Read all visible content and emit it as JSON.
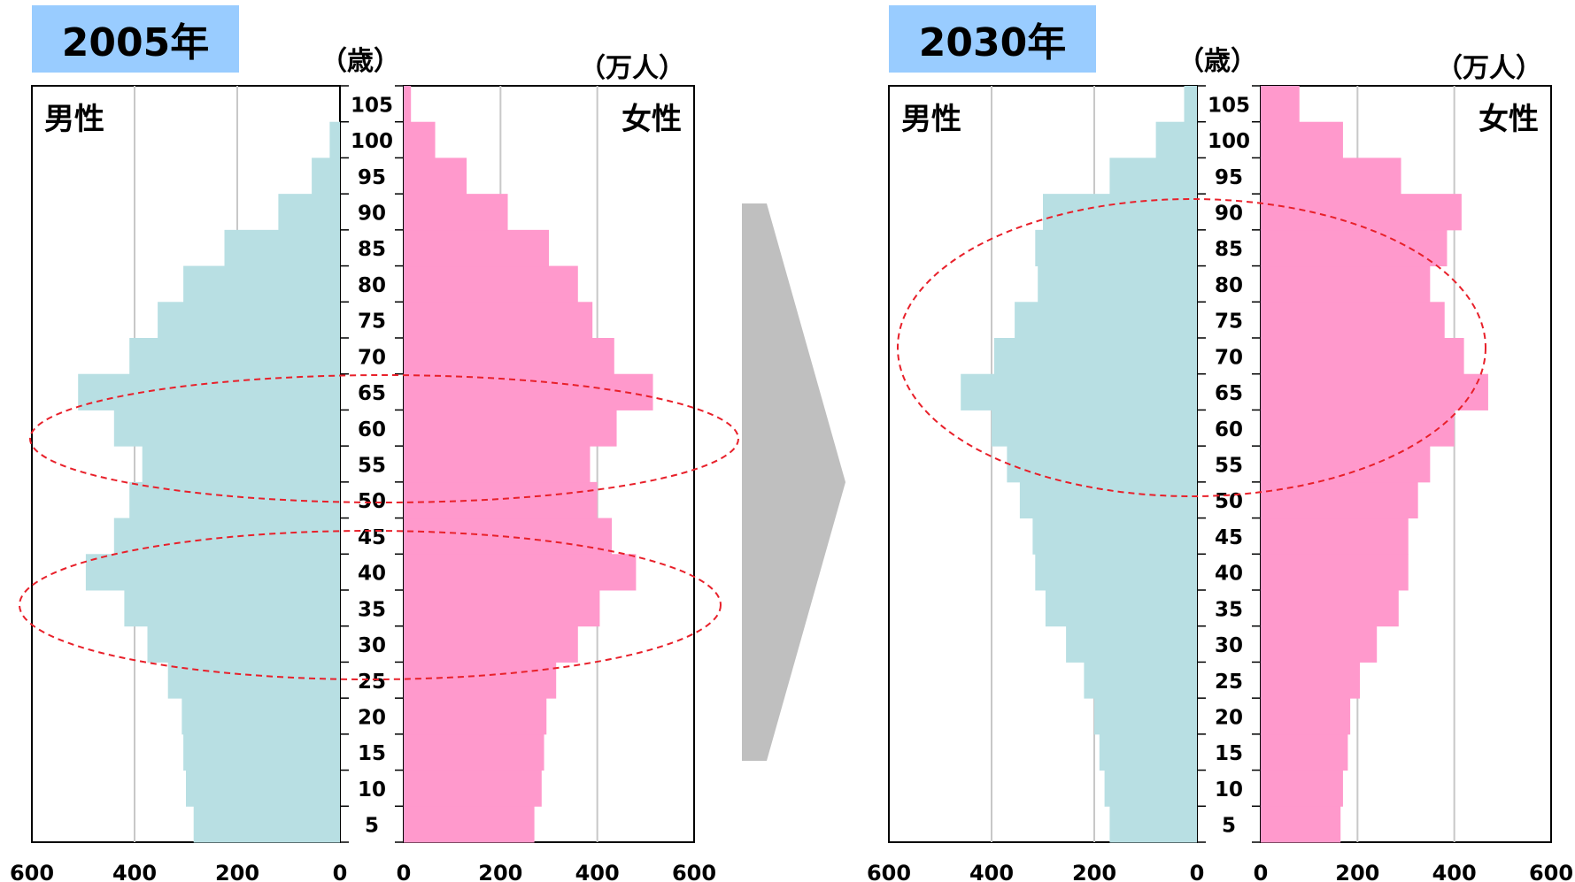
{
  "chart_data": [
    {
      "type": "bar",
      "title": "2005年",
      "age_unit": "（歳）",
      "value_unit": "（万人）",
      "male_label": "男性",
      "female_label": "女性",
      "age_ticks": [
        "105",
        "100",
        "95",
        "90",
        "85",
        "80",
        "75",
        "70",
        "65",
        "60",
        "55",
        "50",
        "45",
        "40",
        "35",
        "30",
        "25",
        "20",
        "15",
        "10",
        "5"
      ],
      "value_ticks_male": [
        "600",
        "400",
        "200",
        "0"
      ],
      "value_ticks_female": [
        "0",
        "200",
        "400",
        "600"
      ],
      "xlim": [
        0,
        600
      ],
      "age_groups": [
        "0-4",
        "5-9",
        "10-14",
        "15-19",
        "20-24",
        "25-29",
        "30-34",
        "35-39",
        "40-44",
        "45-49",
        "50-54",
        "55-59",
        "60-64",
        "65-69",
        "70-74",
        "75-79",
        "80-84",
        "85-89",
        "90-94",
        "95-99",
        "100-104"
      ],
      "series": [
        {
          "name": "男性",
          "values": [
            285,
            300,
            305,
            308,
            335,
            375,
            420,
            495,
            440,
            410,
            385,
            440,
            510,
            410,
            355,
            305,
            225,
            120,
            55,
            20,
            0
          ]
        },
        {
          "name": "女性",
          "values": [
            270,
            285,
            290,
            295,
            315,
            360,
            405,
            480,
            430,
            400,
            385,
            440,
            515,
            435,
            390,
            360,
            300,
            215,
            130,
            65,
            15
          ]
        }
      ],
      "annotations": [
        "ellipse around ages 50-65",
        "ellipse around ages 25-45"
      ]
    },
    {
      "type": "bar",
      "title": "2030年",
      "age_unit": "（歳）",
      "value_unit": "（万人）",
      "male_label": "男性",
      "female_label": "女性",
      "age_ticks": [
        "105",
        "100",
        "95",
        "90",
        "85",
        "80",
        "75",
        "70",
        "65",
        "60",
        "55",
        "50",
        "45",
        "40",
        "35",
        "30",
        "25",
        "20",
        "15",
        "10",
        "5"
      ],
      "value_ticks_male": [
        "600",
        "400",
        "200",
        "0"
      ],
      "value_ticks_female": [
        "0",
        "200",
        "400",
        "600"
      ],
      "xlim": [
        0,
        600
      ],
      "age_groups": [
        "0-4",
        "5-9",
        "10-14",
        "15-19",
        "20-24",
        "25-29",
        "30-34",
        "35-39",
        "40-44",
        "45-49",
        "50-54",
        "55-59",
        "60-64",
        "65-69",
        "70-74",
        "75-79",
        "80-84",
        "85-89",
        "90-94",
        "95-99",
        "100-104"
      ],
      "series": [
        {
          "name": "男性",
          "values": [
            170,
            180,
            190,
            200,
            220,
            255,
            295,
            315,
            320,
            345,
            370,
            400,
            460,
            395,
            355,
            310,
            315,
            300,
            170,
            80,
            25
          ]
        },
        {
          "name": "女性",
          "values": [
            165,
            170,
            180,
            185,
            205,
            240,
            285,
            305,
            305,
            325,
            350,
            400,
            470,
            420,
            380,
            350,
            385,
            415,
            290,
            170,
            80
          ]
        }
      ],
      "annotations": [
        "ellipse around ages 50-90"
      ]
    }
  ]
}
